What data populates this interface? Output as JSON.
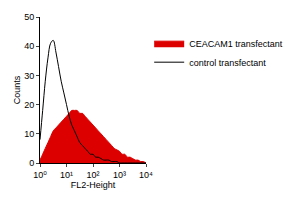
{
  "chart_data": {
    "type": "line",
    "x_label": "FL2-Height",
    "y_label": "Counts",
    "log": "x",
    "grid": false,
    "legend": "right",
    "xlim": [
      1,
      10000
    ],
    "xticks": [
      {
        "value": 1,
        "label": "10⁰"
      },
      {
        "value": 10,
        "label": "10¹"
      },
      {
        "value": 100,
        "label": "10²"
      },
      {
        "value": 1000,
        "label": "10³"
      },
      {
        "value": 10000,
        "label": "10⁴"
      }
    ],
    "ylim": [
      0,
      50
    ],
    "yticks": [
      0,
      10,
      20,
      30,
      40,
      50
    ],
    "x": [
      1,
      1.26,
      1.58,
      2,
      2.51,
      3.16,
      3.98,
      5.01,
      6.31,
      7.94,
      10,
      12.6,
      15.8,
      20,
      25.1,
      31.6,
      39.8,
      50.1,
      63.1,
      79.4,
      100,
      126,
      158,
      200,
      251,
      316,
      398,
      501,
      631,
      794,
      1000,
      1260,
      1580,
      2000,
      2510,
      3160,
      3980,
      5010,
      6310,
      7940,
      10000
    ],
    "series": [
      {
        "name": "CEACAM1 transfectant",
        "color": "#dd0000",
        "type": "area",
        "values": [
          1,
          3,
          5,
          7,
          9,
          11,
          12,
          13,
          14,
          15,
          16,
          17,
          18,
          18,
          18,
          17,
          17,
          16,
          15,
          14,
          13,
          12,
          11,
          10,
          9,
          8,
          7,
          6,
          5,
          4.5,
          4,
          3,
          3,
          2,
          2,
          1.5,
          1,
          1,
          0.5,
          0.5,
          0
        ]
      },
      {
        "name": "control transfectant",
        "color": "#000000",
        "type": "line",
        "values": [
          8,
          18,
          28,
          36,
          41,
          42,
          38,
          33,
          28,
          24,
          20,
          16,
          13,
          11,
          9,
          7,
          6,
          5,
          4,
          3,
          3,
          2,
          2,
          1.5,
          1,
          1,
          1,
          0.5,
          0.5,
          0.5,
          0,
          0,
          0,
          0,
          0,
          0,
          0,
          0,
          0,
          0,
          0
        ]
      }
    ]
  }
}
